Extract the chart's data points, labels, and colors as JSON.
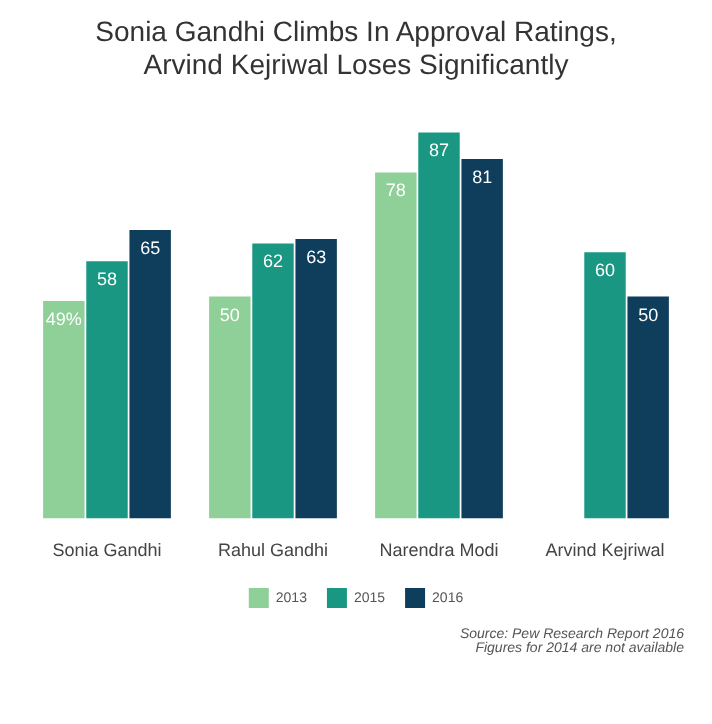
{
  "chart_data": {
    "type": "bar",
    "title": "Sonia Gandhi Climbs In Approval Ratings,\nArvind Kejriwal Loses Significantly",
    "categories": [
      "Sonia Gandhi",
      "Rahul Gandhi",
      "Narendra Modi",
      "Arvind Kejriwal"
    ],
    "series": [
      {
        "name": "2013",
        "color": "#8fcf98",
        "values": [
          49,
          50,
          78,
          null
        ],
        "value_labels": [
          "49%",
          "50",
          "78",
          null
        ]
      },
      {
        "name": "2015",
        "color": "#1a9782",
        "values": [
          58,
          62,
          87,
          60
        ],
        "value_labels": [
          "58",
          "62",
          "87",
          "60"
        ]
      },
      {
        "name": "2016",
        "color": "#0f3d5c",
        "values": [
          65,
          63,
          81,
          50
        ],
        "value_labels": [
          "65",
          "63",
          "81",
          "50"
        ]
      }
    ],
    "legend": "bottom",
    "tick_labels": "x",
    "grid": false,
    "annotations": [
      "Source: Pew Research Report 2016",
      "Figures for 2014 are not available"
    ]
  }
}
